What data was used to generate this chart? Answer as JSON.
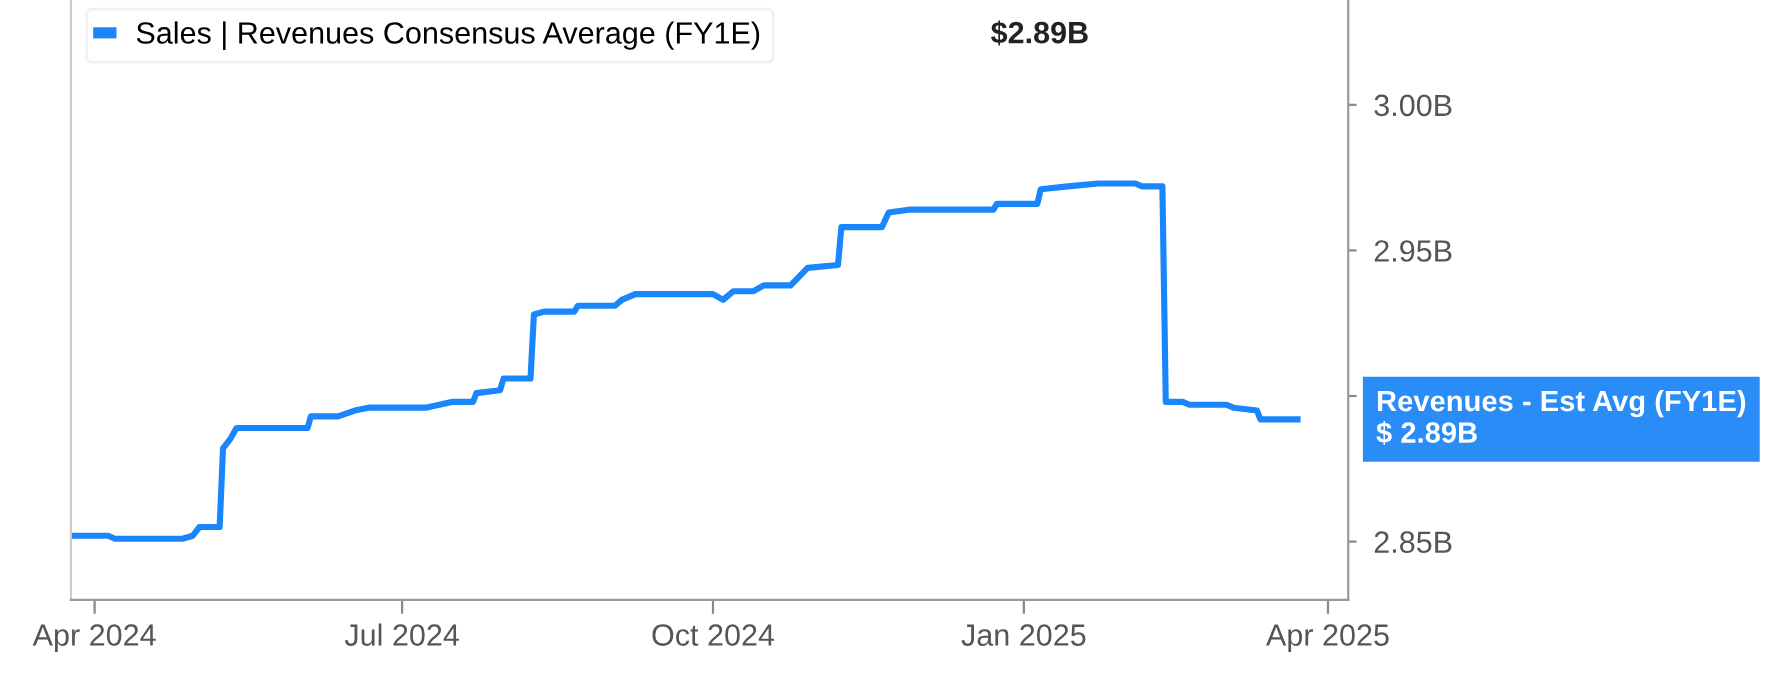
{
  "chart_data": {
    "type": "line",
    "xlim": [
      "2024-03-25",
      "2025-04-07"
    ],
    "ylim": [
      2.83,
      3.036
    ],
    "xticks": [
      {
        "value": "2024-04-01",
        "label": "Apr 2024"
      },
      {
        "value": "2024-07-01",
        "label": "Jul 2024"
      },
      {
        "value": "2024-10-01",
        "label": "Oct 2024"
      },
      {
        "value": "2025-01-01",
        "label": "Jan 2025"
      },
      {
        "value": "2025-04-01",
        "label": "Apr 2025"
      }
    ],
    "yticks": [
      {
        "value": 2.85,
        "label": "2.85B"
      },
      {
        "value": 2.9,
        "label": null
      },
      {
        "value": 2.95,
        "label": "2.95B"
      },
      {
        "value": 3.0,
        "label": "3.00B"
      }
    ],
    "grid": false,
    "legend": "top left",
    "marker": "none",
    "line_style": "solid",
    "x": [
      "2024-03-25",
      "2024-04-05",
      "2024-04-07",
      "2024-04-27",
      "2024-04-30",
      "2024-05-02",
      "2024-05-08",
      "2024-05-09",
      "2024-05-11",
      "2024-05-13",
      "2024-05-16",
      "2024-06-03",
      "2024-06-04",
      "2024-06-12",
      "2024-06-17",
      "2024-06-21",
      "2024-06-29",
      "2024-07-01",
      "2024-07-08",
      "2024-07-16",
      "2024-07-22",
      "2024-07-23",
      "2024-07-30",
      "2024-07-31",
      "2024-08-08",
      "2024-08-09",
      "2024-08-12",
      "2024-08-21",
      "2024-08-22",
      "2024-09-02",
      "2024-09-04",
      "2024-09-08",
      "2024-10-01",
      "2024-10-04",
      "2024-10-07",
      "2024-10-13",
      "2024-10-16",
      "2024-10-24",
      "2024-10-29",
      "2024-11-07",
      "2024-11-08",
      "2024-11-10",
      "2024-11-20",
      "2024-11-22",
      "2024-11-28",
      "2024-12-11",
      "2024-12-23",
      "2024-12-24",
      "2025-01-05",
      "2025-01-06",
      "2025-01-14",
      "2025-01-23",
      "2025-02-03",
      "2025-02-05",
      "2025-02-11",
      "2025-02-12",
      "2025-02-17",
      "2025-02-19",
      "2025-03-02",
      "2025-03-04",
      "2025-03-11",
      "2025-03-12",
      "2025-03-23"
    ],
    "series": [
      {
        "name": "Sales | Revenues Consensus Average (FY1E)",
        "color": "#1a86fb",
        "values": [
          2.852,
          2.852,
          2.851,
          2.851,
          2.852,
          2.855,
          2.855,
          2.882,
          2.885,
          2.889,
          2.889,
          2.889,
          2.893,
          2.893,
          2.895,
          2.896,
          2.896,
          2.896,
          2.896,
          2.898,
          2.898,
          2.901,
          2.902,
          2.906,
          2.906,
          2.928,
          2.929,
          2.929,
          2.931,
          2.931,
          2.933,
          2.935,
          2.935,
          2.933,
          2.936,
          2.936,
          2.938,
          2.938,
          2.944,
          2.945,
          2.958,
          2.958,
          2.958,
          2.963,
          2.964,
          2.964,
          2.964,
          2.966,
          2.966,
          2.971,
          2.972,
          2.973,
          2.973,
          2.972,
          2.972,
          2.898,
          2.898,
          2.897,
          2.897,
          2.896,
          2.895,
          2.892,
          2.892
        ]
      }
    ],
    "annotations": [
      "$2.89B",
      "Revenues - Est Avg (FY1E)\n$ 2.89B"
    ]
  }
}
